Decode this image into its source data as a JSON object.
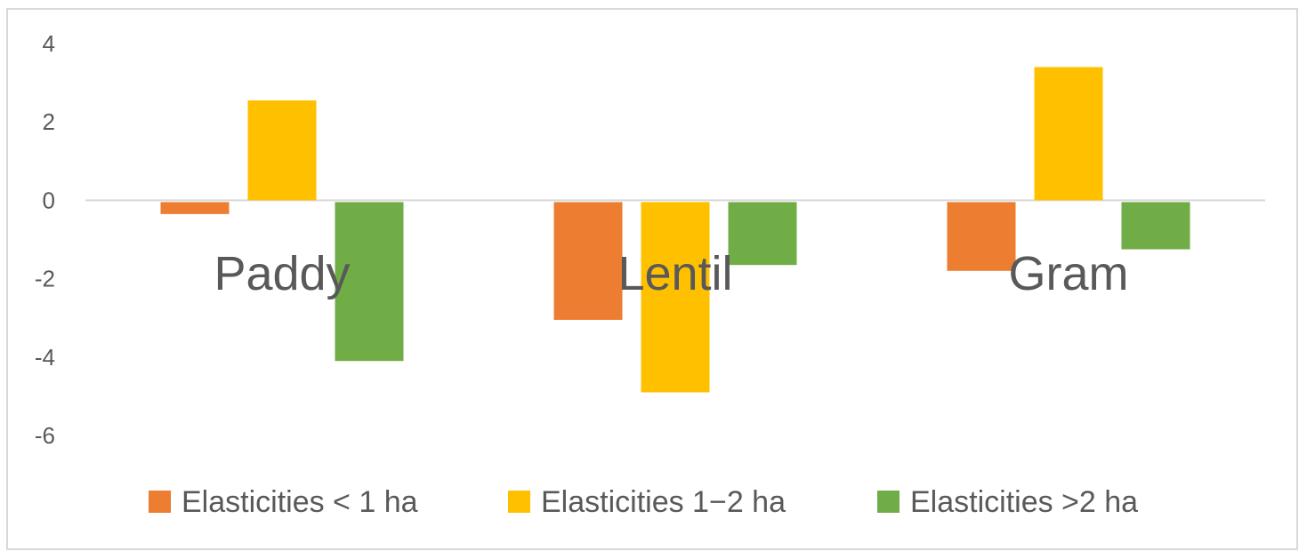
{
  "chart_data": {
    "type": "bar",
    "categories": [
      "Paddy",
      "Lentil",
      "Gram"
    ],
    "series": [
      {
        "name": "Elasticities < 1 ha",
        "color": "#ED7D31",
        "values": [
          -0.35,
          -3.05,
          -1.8
        ]
      },
      {
        "name": "Elasticities 1−2 ha",
        "color": "#FFC000",
        "values": [
          2.55,
          -4.9,
          3.4
        ]
      },
      {
        "name": "Elasticities >2 ha",
        "color": "#70AD47",
        "values": [
          -4.1,
          -1.65,
          -1.25
        ]
      }
    ],
    "y_ticks": [
      "4",
      "2",
      "0",
      "-2",
      "-4",
      "-6"
    ],
    "ylim": [
      -6,
      4
    ],
    "gridlines": false,
    "legend_position": "bottom",
    "axis_color": "#d9d9d9",
    "text_color": "#595959"
  }
}
